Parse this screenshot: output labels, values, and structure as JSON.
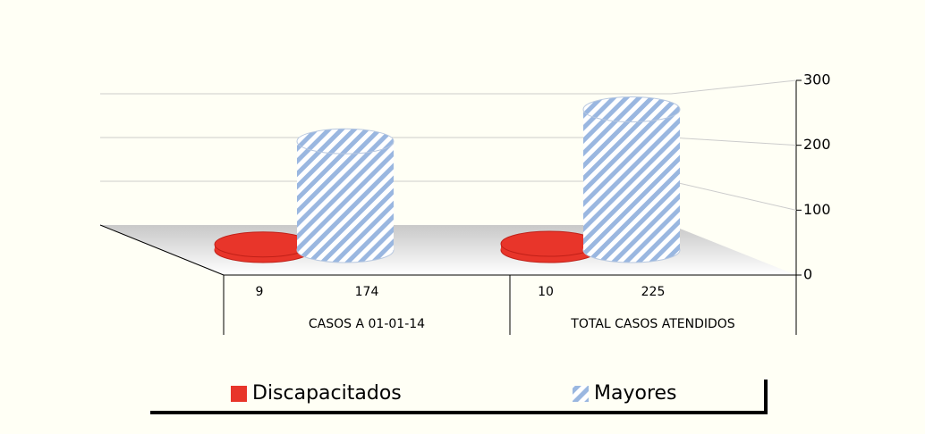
{
  "chart_data": {
    "type": "bar3d",
    "categories": [
      "CASOS A 01-01-14",
      "TOTAL CASOS ATENDIDOS"
    ],
    "series": [
      {
        "name": "Discapacitados",
        "color": "#e8352a",
        "values": [
          9,
          10
        ]
      },
      {
        "name": "Mayores",
        "color": "#9ab7e0",
        "values": [
          174,
          225
        ]
      }
    ],
    "ylim": [
      0,
      300
    ],
    "yticks": [
      0,
      100,
      200,
      300
    ],
    "grid": true,
    "legend": "bottom"
  }
}
